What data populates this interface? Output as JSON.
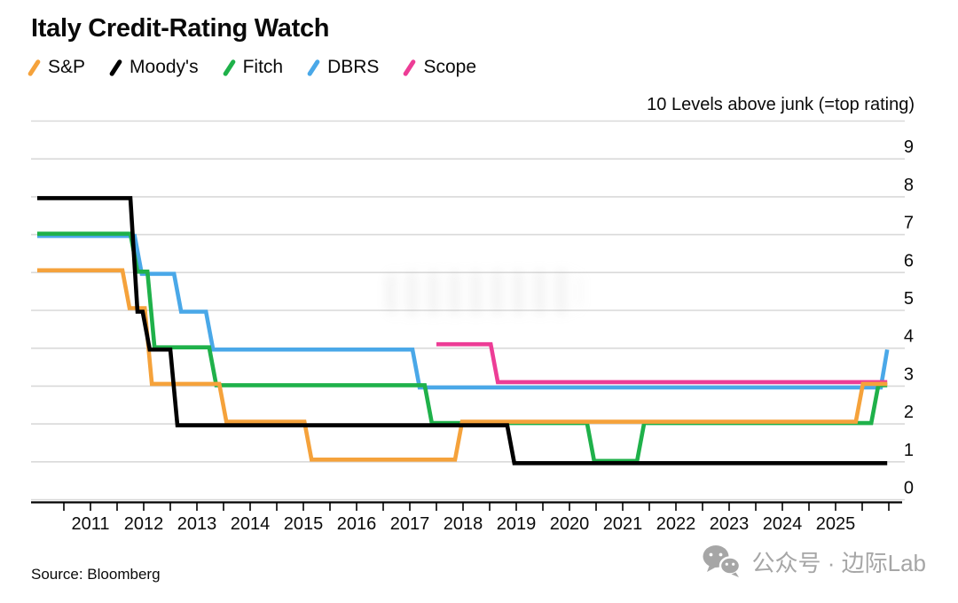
{
  "header": {
    "title": "Italy Credit-Rating Watch"
  },
  "legend": {
    "items": [
      {
        "label": "S&P",
        "color": "#F5A23B"
      },
      {
        "label": "Moody's",
        "color": "#000000"
      },
      {
        "label": "Fitch",
        "color": "#1FB14A"
      },
      {
        "label": "DBRS",
        "color": "#4AA8E8"
      },
      {
        "label": "Scope",
        "color": "#ED3D96"
      }
    ]
  },
  "y_axis": {
    "top_label": "10 Levels above junk (=top rating)",
    "tick_labels": [
      "9",
      "8",
      "7",
      "6",
      "5",
      "4",
      "3",
      "2",
      "1",
      "0"
    ]
  },
  "x_axis": {
    "tick_labels": [
      "2011",
      "2012",
      "2013",
      "2014",
      "2015",
      "2016",
      "2017",
      "2018",
      "2019",
      "2020",
      "2021",
      "2022",
      "2023",
      "2024",
      "2025"
    ]
  },
  "footer": {
    "source": "Source: Bloomberg",
    "watermark": "公众号 · 边际Lab"
  },
  "chart_data": {
    "type": "line",
    "subtype": "step",
    "title": "Italy Credit-Rating Watch",
    "y_top_label": "10 Levels above junk (=top rating)",
    "ylabel": "Levels above junk",
    "ylim": [
      0,
      10
    ],
    "x_range_years": [
      2010.0,
      2026.3
    ],
    "grid": "horizontal",
    "legend_position": "top-left",
    "units": "rating notches above junk",
    "series": [
      {
        "name": "S&P",
        "color": "#F5A23B",
        "steps": [
          [
            2010.0,
            6
          ],
          [
            2011.6,
            5
          ],
          [
            2012.02,
            3
          ],
          [
            2013.42,
            2
          ],
          [
            2015.02,
            1
          ],
          [
            2017.85,
            2
          ],
          [
            2025.38,
            3
          ]
        ],
        "end_year": 2025.97
      },
      {
        "name": "Moody's",
        "color": "#000000",
        "steps": [
          [
            2010.0,
            8
          ],
          [
            2011.75,
            5
          ],
          [
            2011.98,
            4
          ],
          [
            2012.5,
            2
          ],
          [
            2018.83,
            1
          ]
        ],
        "end_year": 2025.97
      },
      {
        "name": "Fitch",
        "color": "#1FB14A",
        "steps": [
          [
            2010.0,
            7
          ],
          [
            2011.75,
            6
          ],
          [
            2012.07,
            4
          ],
          [
            2013.23,
            3
          ],
          [
            2017.28,
            2
          ],
          [
            2020.33,
            1
          ],
          [
            2021.27,
            2
          ],
          [
            2025.67,
            3
          ]
        ],
        "end_year": 2025.97
      },
      {
        "name": "DBRS",
        "color": "#4AA8E8",
        "steps": [
          [
            2010.0,
            7
          ],
          [
            2011.83,
            6
          ],
          [
            2012.57,
            5
          ],
          [
            2013.17,
            4
          ],
          [
            2017.05,
            3
          ],
          [
            2025.85,
            4
          ]
        ],
        "end_year": 2025.97
      },
      {
        "name": "Scope",
        "color": "#ED3D96",
        "steps": [
          [
            2017.5,
            4
          ],
          [
            2018.52,
            3
          ]
        ],
        "end_year": 2025.97
      }
    ]
  }
}
